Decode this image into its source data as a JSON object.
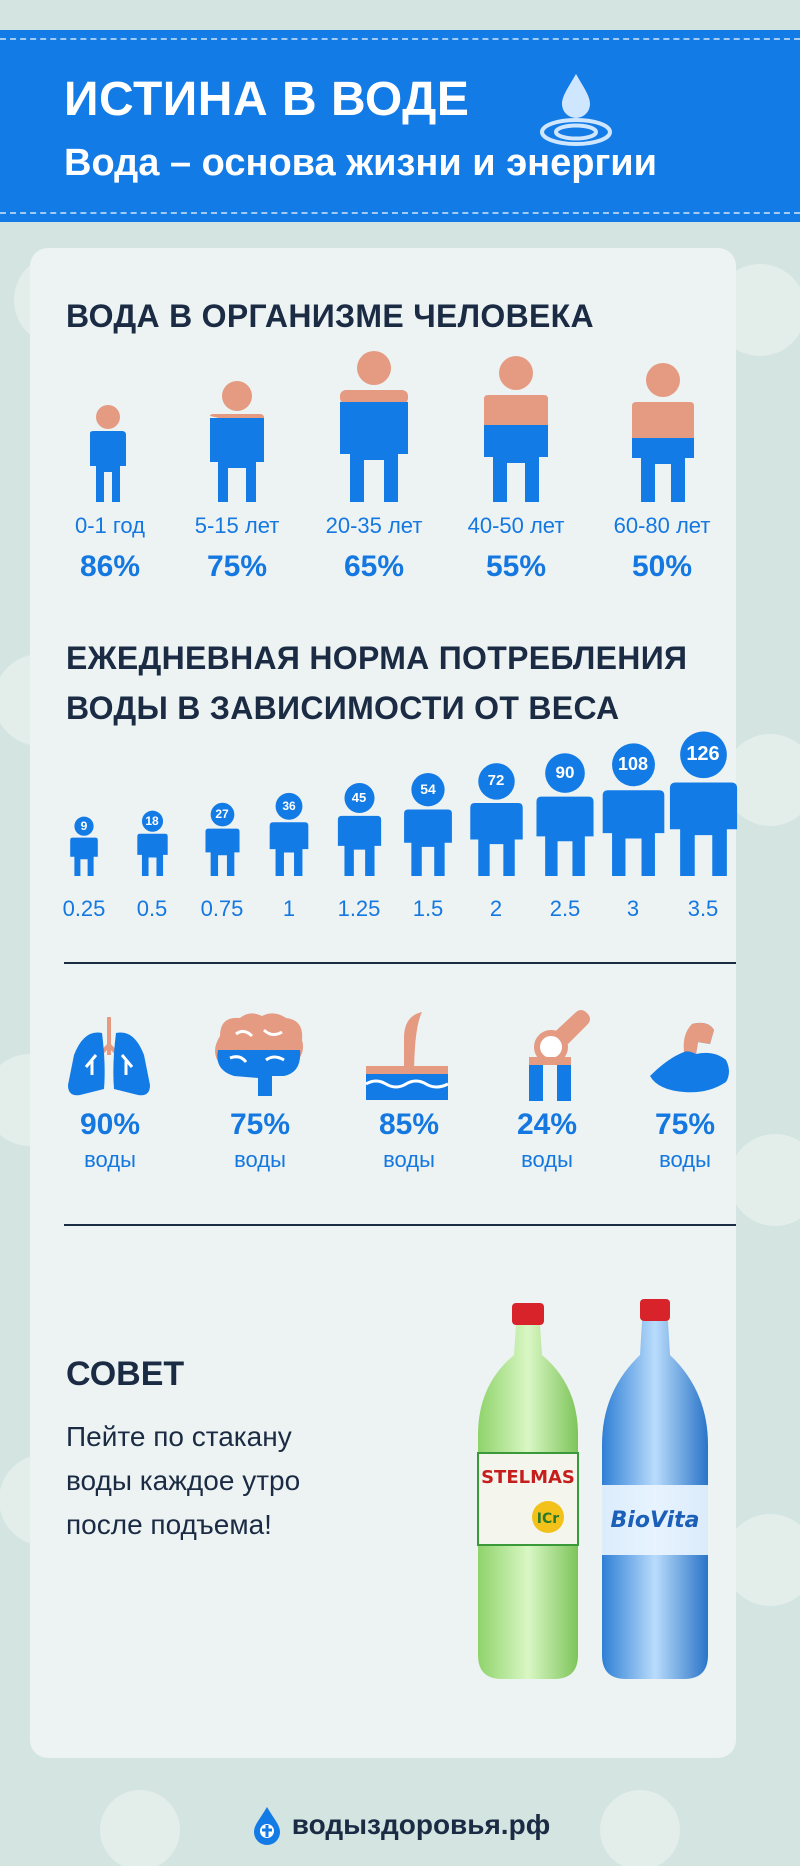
{
  "header": {
    "title": "ИСТИНА В ВОДЕ",
    "subtitle": "Вода – основа жизни и энергии",
    "icon": "water-drop-icon"
  },
  "colors": {
    "blue": "#137be6",
    "skin": "#e59a82",
    "dark": "#1b2b44",
    "card": "#edf3f3"
  },
  "body_water": {
    "title": "ВОДА В ОРГАНИЗМЕ ЧЕЛОВЕКА",
    "groups": [
      {
        "age": "0-1 год",
        "percent": "86%"
      },
      {
        "age": "5-15 лет",
        "percent": "75%"
      },
      {
        "age": "20-35 лет",
        "percent": "65%"
      },
      {
        "age": "40-50 лет",
        "percent": "55%"
      },
      {
        "age": "60-80 лет",
        "percent": "50%"
      }
    ]
  },
  "daily_norm": {
    "title_line1": "ЕЖЕДНЕВНАЯ НОРМА ПОТРЕБЛЕНИЯ",
    "title_line2": "ВОДЫ В ЗАВИСИМОСТИ ОТ ВЕСА",
    "items": [
      {
        "weight": "9",
        "liters": "0.25"
      },
      {
        "weight": "18",
        "liters": "0.5"
      },
      {
        "weight": "27",
        "liters": "0.75"
      },
      {
        "weight": "36",
        "liters": "1"
      },
      {
        "weight": "45",
        "liters": "1.25"
      },
      {
        "weight": "54",
        "liters": "1.5"
      },
      {
        "weight": "72",
        "liters": "2"
      },
      {
        "weight": "90",
        "liters": "2.5"
      },
      {
        "weight": "108",
        "liters": "3"
      },
      {
        "weight": "126",
        "liters": "3.5"
      }
    ]
  },
  "organs": [
    {
      "icon": "lungs-icon",
      "percent": "90%",
      "label": "воды"
    },
    {
      "icon": "brain-icon",
      "percent": "75%",
      "label": "воды"
    },
    {
      "icon": "skin-icon",
      "percent": "85%",
      "label": "воды"
    },
    {
      "icon": "bone-joint-icon",
      "percent": "24%",
      "label": "воды"
    },
    {
      "icon": "muscle-icon",
      "percent": "75%",
      "label": "воды"
    }
  ],
  "advice": {
    "title": "СОВЕТ",
    "line1": "Пейте по стакану",
    "line2": "воды каждое утро",
    "line3": "после подъема!"
  },
  "bottles": {
    "left_label": "STELMAS",
    "left_badge": "ICr",
    "right_label": "BioVita"
  },
  "footer": {
    "site": "водыздоровья.рф"
  }
}
